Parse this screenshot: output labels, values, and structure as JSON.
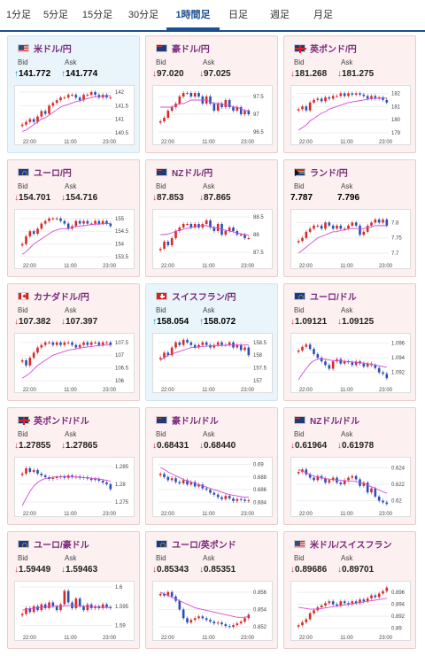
{
  "tabs": [
    {
      "label": "1分足",
      "active": false
    },
    {
      "label": "5分足",
      "active": false
    },
    {
      "label": "15分足",
      "active": false
    },
    {
      "label": "30分足",
      "active": false
    },
    {
      "label": "1時間足",
      "active": true
    },
    {
      "label": "日足",
      "active": false
    },
    {
      "label": "週足",
      "active": false
    },
    {
      "label": "月足",
      "active": false
    }
  ],
  "labels": {
    "bid": "Bid",
    "ask": "Ask"
  },
  "x_ticks": [
    "22:00",
    "11:00",
    "23:00"
  ],
  "colors": {
    "up": "#1a8ad0",
    "down": "#d33",
    "ma": "#d24cd6",
    "bull": "#d62a2a",
    "bear": "#2950b8"
  },
  "cards": [
    {
      "pair": "米ドル/円",
      "flag": "us",
      "dir": "up",
      "bid": "141.772",
      "ask": "141.774",
      "chart_data": {
        "type": "candlestick",
        "y_ticks": [
          "142",
          "141.5",
          "141",
          "140.5"
        ],
        "ylim": [
          140.4,
          142.1
        ],
        "close": [
          140.8,
          140.9,
          141.0,
          140.9,
          141.1,
          141.3,
          141.2,
          141.5,
          141.6,
          141.7,
          141.8,
          141.8,
          141.9,
          141.9,
          141.8,
          141.7,
          141.9,
          141.9,
          142.0,
          141.9,
          141.8,
          141.9,
          141.8,
          141.8
        ],
        "ma": [
          140.55,
          140.6,
          140.7,
          140.8,
          140.9,
          141.0,
          141.05,
          141.15,
          141.25,
          141.35,
          141.45,
          141.5,
          141.55,
          141.6,
          141.65,
          141.68,
          141.72,
          141.76,
          141.8,
          141.82,
          141.84,
          141.85,
          141.86,
          141.87
        ]
      }
    },
    {
      "pair": "豪ドル/円",
      "flag": "au",
      "dir": "down",
      "bid": "97.020",
      "ask": "97.025",
      "chart_data": {
        "type": "candlestick",
        "y_ticks": [
          "97.5",
          "97",
          "96.5"
        ],
        "ylim": [
          96.4,
          97.7
        ],
        "close": [
          96.8,
          96.9,
          97.1,
          97.2,
          97.3,
          97.5,
          97.6,
          97.6,
          97.5,
          97.6,
          97.5,
          97.3,
          97.5,
          97.3,
          97.1,
          97.3,
          97.2,
          97.4,
          97.2,
          97.1,
          97.2,
          97.0,
          97.1,
          97.0
        ],
        "ma": [
          97.2,
          97.2,
          97.2,
          97.2,
          97.25,
          97.3,
          97.3,
          97.35,
          97.4,
          97.4,
          97.4,
          97.4,
          97.4,
          97.35,
          97.3,
          97.3,
          97.3,
          97.25,
          97.25,
          97.2,
          97.2,
          97.15,
          97.1,
          97.1
        ]
      }
    },
    {
      "pair": "英ポンド/円",
      "flag": "gb",
      "dir": "down",
      "bid": "181.268",
      "ask": "181.275",
      "chart_data": {
        "type": "candlestick",
        "y_ticks": [
          "182",
          "181",
          "180",
          "179"
        ],
        "ylim": [
          178.8,
          182.3
        ],
        "close": [
          180.8,
          181.0,
          180.7,
          181.3,
          181.5,
          181.6,
          181.4,
          181.7,
          181.6,
          181.8,
          181.8,
          182.0,
          181.8,
          182.0,
          181.9,
          182.0,
          181.9,
          181.8,
          181.6,
          181.8,
          181.6,
          181.7,
          181.5,
          181.3
        ],
        "ma": [
          179.2,
          179.4,
          179.6,
          179.9,
          180.1,
          180.3,
          180.5,
          180.6,
          180.8,
          180.9,
          181.0,
          181.1,
          181.2,
          181.3,
          181.35,
          181.4,
          181.45,
          181.5,
          181.55,
          181.6,
          181.62,
          181.63,
          181.64,
          181.65
        ]
      }
    },
    {
      "pair": "ユーロ/円",
      "flag": "eu",
      "dir": "down",
      "bid": "154.701",
      "ask": "154.716",
      "chart_data": {
        "type": "candlestick",
        "y_ticks": [
          "155",
          "154.5",
          "154",
          "153.5"
        ],
        "ylim": [
          153.4,
          155.2
        ],
        "close": [
          154.0,
          154.3,
          154.5,
          154.4,
          154.6,
          154.8,
          154.9,
          155.0,
          155.0,
          155.0,
          154.9,
          154.8,
          154.6,
          154.7,
          154.9,
          154.8,
          154.9,
          154.8,
          154.8,
          154.9,
          154.8,
          154.9,
          154.8,
          154.7
        ],
        "ma": [
          153.6,
          153.7,
          153.85,
          154.0,
          154.1,
          154.2,
          154.3,
          154.4,
          154.5,
          154.55,
          154.6,
          154.6,
          154.6,
          154.65,
          154.7,
          154.7,
          154.72,
          154.74,
          154.76,
          154.78,
          154.78,
          154.79,
          154.8,
          154.8
        ]
      }
    },
    {
      "pair": "NZドル/円",
      "flag": "nz",
      "dir": "down",
      "bid": "87.853",
      "ask": "87.865",
      "chart_data": {
        "type": "candlestick",
        "y_ticks": [
          "88.5",
          "88",
          "87.5"
        ],
        "ylim": [
          87.3,
          88.6
        ],
        "close": [
          87.6,
          87.8,
          87.7,
          87.9,
          88.1,
          88.2,
          88.3,
          88.3,
          88.2,
          88.3,
          88.2,
          88.3,
          88.4,
          88.2,
          88.1,
          88.3,
          88.0,
          88.1,
          88.2,
          88.1,
          88.0,
          88.0,
          87.9,
          87.9
        ],
        "ma": [
          88.0,
          88.0,
          88.02,
          88.05,
          88.1,
          88.12,
          88.15,
          88.18,
          88.2,
          88.22,
          88.25,
          88.25,
          88.25,
          88.22,
          88.2,
          88.18,
          88.15,
          88.12,
          88.1,
          88.08,
          88.05,
          88.02,
          88.0,
          87.98
        ]
      }
    },
    {
      "pair": "ランド/円",
      "flag": "za",
      "dir": "none",
      "bid": "7.787",
      "ask": "7.796",
      "chart_data": {
        "type": "candlestick",
        "y_ticks": [
          "7.8",
          "7.75",
          "7.7"
        ],
        "ylim": [
          7.68,
          7.83
        ],
        "close": [
          7.74,
          7.75,
          7.77,
          7.78,
          7.79,
          7.79,
          7.78,
          7.8,
          7.79,
          7.78,
          7.79,
          7.78,
          7.78,
          7.79,
          7.8,
          7.79,
          7.76,
          7.77,
          7.79,
          7.8,
          7.81,
          7.8,
          7.81,
          7.79
        ],
        "ma": [
          7.7,
          7.71,
          7.72,
          7.73,
          7.74,
          7.75,
          7.755,
          7.76,
          7.765,
          7.77,
          7.77,
          7.775,
          7.775,
          7.78,
          7.78,
          7.78,
          7.78,
          7.78,
          7.785,
          7.785,
          7.79,
          7.79,
          7.79,
          7.79
        ]
      }
    },
    {
      "pair": "カナダドル/円",
      "flag": "ca",
      "dir": "down",
      "bid": "107.382",
      "ask": "107.397",
      "chart_data": {
        "type": "candlestick",
        "y_ticks": [
          "107.5",
          "107",
          "106.5",
          "106"
        ],
        "ylim": [
          105.9,
          107.7
        ],
        "close": [
          106.8,
          106.6,
          106.9,
          107.1,
          107.3,
          107.4,
          107.5,
          107.5,
          107.4,
          107.5,
          107.4,
          107.5,
          107.5,
          107.4,
          107.3,
          107.4,
          107.5,
          107.4,
          107.5,
          107.5,
          107.4,
          107.5,
          107.5,
          107.4
        ],
        "ma": [
          106.1,
          106.2,
          106.3,
          106.45,
          106.6,
          106.7,
          106.8,
          106.9,
          107.0,
          107.05,
          107.1,
          107.15,
          107.2,
          107.22,
          107.25,
          107.28,
          107.3,
          107.32,
          107.34,
          107.36,
          107.38,
          107.39,
          107.4,
          107.4
        ]
      }
    },
    {
      "pair": "スイスフラン/円",
      "flag": "ch",
      "dir": "up",
      "bid": "158.054",
      "ask": "158.072",
      "chart_data": {
        "type": "candlestick",
        "y_ticks": [
          "158.5",
          "158",
          "157.5",
          "157"
        ],
        "ylim": [
          156.9,
          158.7
        ],
        "close": [
          157.9,
          158.1,
          158.0,
          158.3,
          158.5,
          158.4,
          158.6,
          158.5,
          158.4,
          158.3,
          158.4,
          158.5,
          158.4,
          158.3,
          158.4,
          158.5,
          158.4,
          158.4,
          158.5,
          158.3,
          158.4,
          158.2,
          158.3,
          158.0
        ],
        "ma": [
          157.8,
          157.9,
          158.0,
          158.05,
          158.1,
          158.15,
          158.2,
          158.25,
          158.3,
          158.3,
          158.32,
          158.34,
          158.35,
          158.36,
          158.37,
          158.38,
          158.38,
          158.39,
          158.4,
          158.4,
          158.4,
          158.4,
          158.4,
          158.4
        ]
      }
    },
    {
      "pair": "ユーロ/ドル",
      "flag": "eu",
      "dir": "down",
      "bid": "1.09121",
      "ask": "1.09125",
      "chart_data": {
        "type": "candlestick",
        "y_ticks": [
          "1.096",
          "1.094",
          "1.092"
        ],
        "ylim": [
          1.0905,
          1.0968
        ],
        "close": [
          1.095,
          1.0955,
          1.0958,
          1.0952,
          1.0945,
          1.094,
          1.0935,
          1.093,
          1.0925,
          1.0935,
          1.0938,
          1.0932,
          1.0935,
          1.0934,
          1.093,
          1.0935,
          1.0932,
          1.0928,
          1.0932,
          1.093,
          1.0926,
          1.092,
          1.0918,
          1.0912
        ],
        "ma": [
          1.091,
          1.0918,
          1.0925,
          1.0932,
          1.0936,
          1.0938,
          1.0939,
          1.0938,
          1.0937,
          1.0936,
          1.0936,
          1.0936,
          1.0935,
          1.0935,
          1.0934,
          1.0934,
          1.0933,
          1.0933,
          1.0932,
          1.0931,
          1.093,
          1.0929,
          1.0928,
          1.0927
        ]
      }
    },
    {
      "pair": "英ポンド/ドル",
      "flag": "gb",
      "dir": "down",
      "bid": "1.27855",
      "ask": "1.27865",
      "chart_data": {
        "type": "candlestick",
        "y_ticks": [
          "1.285",
          "1.28",
          "1.275"
        ],
        "ylim": [
          1.2735,
          1.2865
        ],
        "close": [
          1.283,
          1.2845,
          1.2835,
          1.284,
          1.283,
          1.2825,
          1.282,
          1.2815,
          1.2818,
          1.282,
          1.2822,
          1.2818,
          1.2825,
          1.282,
          1.2822,
          1.2818,
          1.282,
          1.2816,
          1.2812,
          1.2815,
          1.281,
          1.2805,
          1.28,
          1.2786
        ],
        "ma": [
          1.274,
          1.276,
          1.278,
          1.2795,
          1.2805,
          1.2812,
          1.2816,
          1.2818,
          1.282,
          1.2821,
          1.2822,
          1.2822,
          1.2822,
          1.2821,
          1.282,
          1.282,
          1.2819,
          1.2818,
          1.2817,
          1.2816,
          1.2815,
          1.2813,
          1.2811,
          1.2809
        ]
      }
    },
    {
      "pair": "豪ドル/ドル",
      "flag": "au",
      "dir": "down",
      "bid": "0.68431",
      "ask": "0.68440",
      "chart_data": {
        "type": "candlestick",
        "y_ticks": [
          "0.69",
          "0.688",
          "0.686",
          "0.684"
        ],
        "ylim": [
          0.6832,
          0.6905
        ],
        "close": [
          0.6885,
          0.688,
          0.6875,
          0.6878,
          0.6872,
          0.687,
          0.6875,
          0.6868,
          0.6872,
          0.6865,
          0.6868,
          0.6862,
          0.686,
          0.6855,
          0.6852,
          0.6848,
          0.6845,
          0.685,
          0.6846,
          0.6842,
          0.6845,
          0.6844,
          0.6842,
          0.6843
        ],
        "ma": [
          0.6895,
          0.6892,
          0.6888,
          0.6885,
          0.6882,
          0.6879,
          0.6876,
          0.6874,
          0.6872,
          0.687,
          0.6868,
          0.6866,
          0.6864,
          0.6862,
          0.686,
          0.6858,
          0.6856,
          0.6854,
          0.6852,
          0.6851,
          0.685,
          0.6849,
          0.6848,
          0.6848
        ]
      }
    },
    {
      "pair": "NZドル/ドル",
      "flag": "nz",
      "dir": "down",
      "bid": "0.61964",
      "ask": "0.61978",
      "chart_data": {
        "type": "candlestick",
        "y_ticks": [
          "0.624",
          "0.622",
          "0.62"
        ],
        "ylim": [
          0.6192,
          0.6248
        ],
        "close": [
          0.6235,
          0.6238,
          0.6232,
          0.6228,
          0.6225,
          0.623,
          0.6227,
          0.6222,
          0.6225,
          0.6228,
          0.6222,
          0.622,
          0.6225,
          0.6228,
          0.623,
          0.6226,
          0.6218,
          0.6222,
          0.621,
          0.6215,
          0.6205,
          0.62,
          0.6198,
          0.6196
        ],
        "ma": [
          0.6238,
          0.6236,
          0.6234,
          0.6232,
          0.623,
          0.6229,
          0.6228,
          0.6227,
          0.6226,
          0.6226,
          0.6225,
          0.6225,
          0.6224,
          0.6224,
          0.6224,
          0.6223,
          0.6222,
          0.6221,
          0.6219,
          0.6217,
          0.6215,
          0.6213,
          0.6211,
          0.6209
        ]
      }
    },
    {
      "pair": "ユーロ/豪ドル",
      "flag": "eu",
      "dir": "down",
      "bid": "1.59449",
      "ask": "1.59463",
      "chart_data": {
        "type": "candlestick",
        "y_ticks": [
          "1.6",
          "1.595",
          "1.59"
        ],
        "ylim": [
          1.5885,
          1.6005
        ],
        "close": [
          1.593,
          1.5945,
          1.5935,
          1.595,
          1.594,
          1.5955,
          1.5945,
          1.596,
          1.595,
          1.594,
          1.5955,
          1.599,
          1.596,
          1.5945,
          1.597,
          1.595,
          1.594,
          1.5955,
          1.5945,
          1.595,
          1.5945,
          1.5955,
          1.5948,
          1.5945
        ],
        "ma": [
          1.594,
          1.5942,
          1.5944,
          1.5945,
          1.5946,
          1.5947,
          1.5948,
          1.5949,
          1.595,
          1.595,
          1.595,
          1.5951,
          1.5952,
          1.5952,
          1.5952,
          1.5951,
          1.595,
          1.595,
          1.5949,
          1.5948,
          1.5948,
          1.5947,
          1.5947,
          1.5946
        ]
      }
    },
    {
      "pair": "ユーロ/英ポンド",
      "flag": "eu",
      "dir": "down",
      "bid": "0.85343",
      "ask": "0.85351",
      "chart_data": {
        "type": "candlestick",
        "y_ticks": [
          "0.856",
          "0.854",
          "0.852"
        ],
        "ylim": [
          0.8515,
          0.8568
        ],
        "close": [
          0.8558,
          0.8556,
          0.856,
          0.8555,
          0.855,
          0.854,
          0.853,
          0.8525,
          0.8528,
          0.853,
          0.8532,
          0.853,
          0.8528,
          0.8526,
          0.8524,
          0.8525,
          0.8523,
          0.8521,
          0.852,
          0.8522,
          0.8524,
          0.8526,
          0.853,
          0.8534
        ],
        "ma": [
          0.856,
          0.8558,
          0.8556,
          0.8554,
          0.8552,
          0.855,
          0.8548,
          0.8546,
          0.8544,
          0.8542,
          0.8541,
          0.854,
          0.8539,
          0.8538,
          0.8537,
          0.8536,
          0.8535,
          0.8534,
          0.8533,
          0.8532,
          0.8531,
          0.8531,
          0.8531,
          0.8532
        ]
      }
    },
    {
      "pair": "米ドル/スイスフラン",
      "flag": "us",
      "dir": "down",
      "bid": "0.89686",
      "ask": "0.89701",
      "chart_data": {
        "type": "candlestick",
        "y_ticks": [
          "0.896",
          "0.894",
          "0.892",
          "0.89"
        ],
        "ylim": [
          0.8895,
          0.8972
        ],
        "close": [
          0.8905,
          0.891,
          0.8915,
          0.8925,
          0.893,
          0.8935,
          0.8938,
          0.8942,
          0.8945,
          0.894,
          0.8938,
          0.8945,
          0.8942,
          0.894,
          0.8945,
          0.8942,
          0.8948,
          0.8945,
          0.895,
          0.8955,
          0.8952,
          0.8958,
          0.8962,
          0.8968
        ],
        "ma": [
          0.8935,
          0.8934,
          0.8933,
          0.8932,
          0.8932,
          0.8932,
          0.8933,
          0.8934,
          0.8935,
          0.8936,
          0.8937,
          0.8938,
          0.8939,
          0.894,
          0.8941,
          0.8942,
          0.8943,
          0.8944,
          0.8945,
          0.8946,
          0.8947,
          0.8948,
          0.8949,
          0.895
        ]
      }
    }
  ]
}
